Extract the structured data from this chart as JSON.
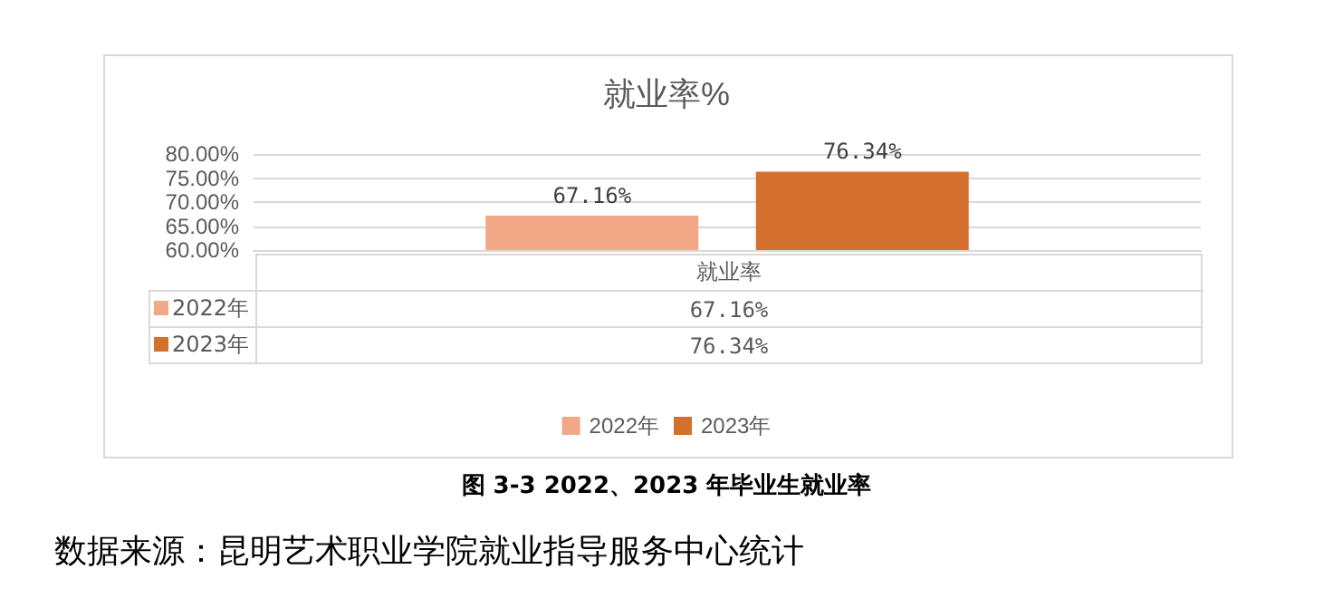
{
  "chart_data": {
    "type": "bar",
    "title": "就业率%",
    "categories": [
      "就业率"
    ],
    "series": [
      {
        "name": "2022年",
        "color": "#f1a887",
        "values": [
          67.16
        ],
        "value_labels": [
          "67.16%"
        ]
      },
      {
        "name": "2023年",
        "color": "#d3702d",
        "values": [
          76.34
        ],
        "value_labels": [
          "76.34%"
        ]
      }
    ],
    "ylim": [
      60,
      80
    ],
    "yticks": [
      {
        "value": 60,
        "label": "60.00%"
      },
      {
        "value": 65,
        "label": "65.00%"
      },
      {
        "value": 70,
        "label": "70.00%"
      },
      {
        "value": 75,
        "label": "75.00%"
      },
      {
        "value": 80,
        "label": "80.00%"
      }
    ],
    "grid": "y",
    "legend": "bottom",
    "annotations": [
      "图 3-3 2022、2023 年毕业生就业率",
      "数据来源：昆明艺术职业学院就业指导服务中心统计"
    ]
  }
}
